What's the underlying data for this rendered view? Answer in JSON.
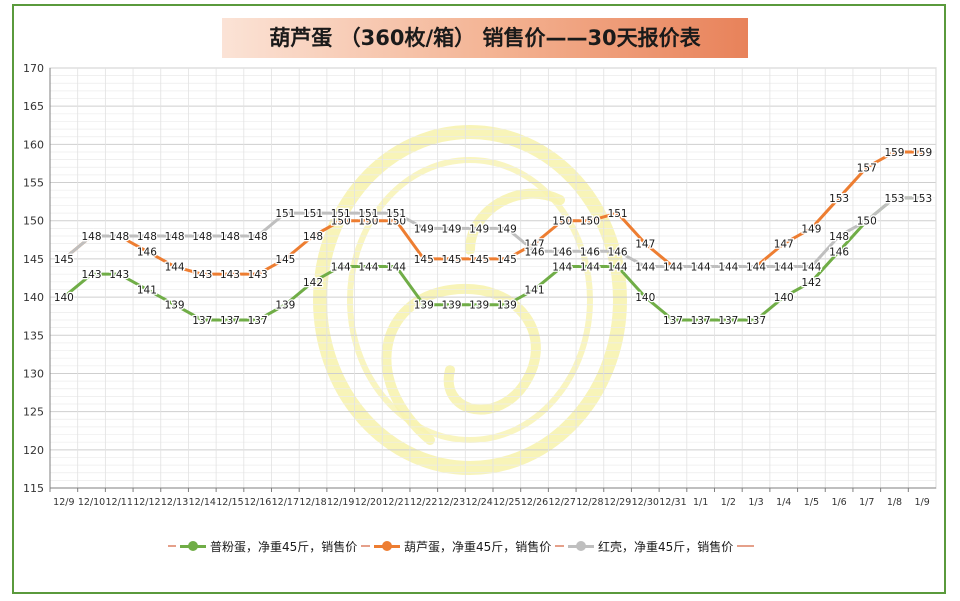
{
  "title": "葫芦蛋 （360枚/箱） 销售价——30天报价表",
  "colors": {
    "frame": "#5a9a3c",
    "series_green": "#70ad47",
    "series_orange": "#ed7d31",
    "series_gray": "#bfbfbf",
    "watermark": "#f7f3b0"
  },
  "watermark_icon": "gourd-logo-icon",
  "chart_data": {
    "type": "line",
    "title": "葫芦蛋 （360枚/箱） 销售价——30天报价表",
    "xlabel": "",
    "ylabel": "",
    "ylim": [
      115,
      170
    ],
    "yticks": [
      115,
      120,
      125,
      130,
      135,
      140,
      145,
      150,
      155,
      160,
      165,
      170
    ],
    "grid": true,
    "legend_position": "bottom",
    "categories": [
      "12/9",
      "12/10",
      "12/11",
      "12/12",
      "12/13",
      "12/14",
      "12/15",
      "12/16",
      "12/17",
      "12/18",
      "12/19",
      "12/20",
      "12/21",
      "12/22",
      "12/23",
      "12/24",
      "12/25",
      "12/26",
      "12/27",
      "12/28",
      "12/29",
      "12/30",
      "12/31",
      "1/1",
      "1/2",
      "1/3",
      "1/4",
      "1/5",
      "1/6",
      "1/7",
      "1/8",
      "1/9"
    ],
    "series": [
      {
        "name": "普粉蛋，净重45斤，销售价",
        "color": "#70ad47",
        "values": [
          140,
          143,
          143,
          141,
          139,
          137,
          137,
          137,
          139,
          142,
          144,
          144,
          144,
          139,
          139,
          139,
          139,
          141,
          144,
          144,
          144,
          140,
          137,
          137,
          137,
          137,
          140,
          142,
          146,
          150,
          153,
          153
        ]
      },
      {
        "name": "葫芦蛋，净重45斤，销售价",
        "color": "#ed7d31",
        "values": [
          145,
          148,
          148,
          146,
          144,
          143,
          143,
          143,
          145,
          148,
          150,
          150,
          150,
          145,
          145,
          145,
          145,
          147,
          150,
          150,
          151,
          147,
          144,
          144,
          144,
          144,
          147,
          149,
          153,
          157,
          159,
          159
        ]
      },
      {
        "name": "红壳，净重45斤，销售价",
        "color": "#bfbfbf",
        "values": [
          145,
          148,
          148,
          148,
          148,
          148,
          148,
          148,
          151,
          151,
          151,
          151,
          151,
          149,
          149,
          149,
          149,
          146,
          146,
          146,
          146,
          144,
          144,
          144,
          144,
          144,
          144,
          144,
          148,
          150,
          153,
          153
        ]
      }
    ]
  }
}
